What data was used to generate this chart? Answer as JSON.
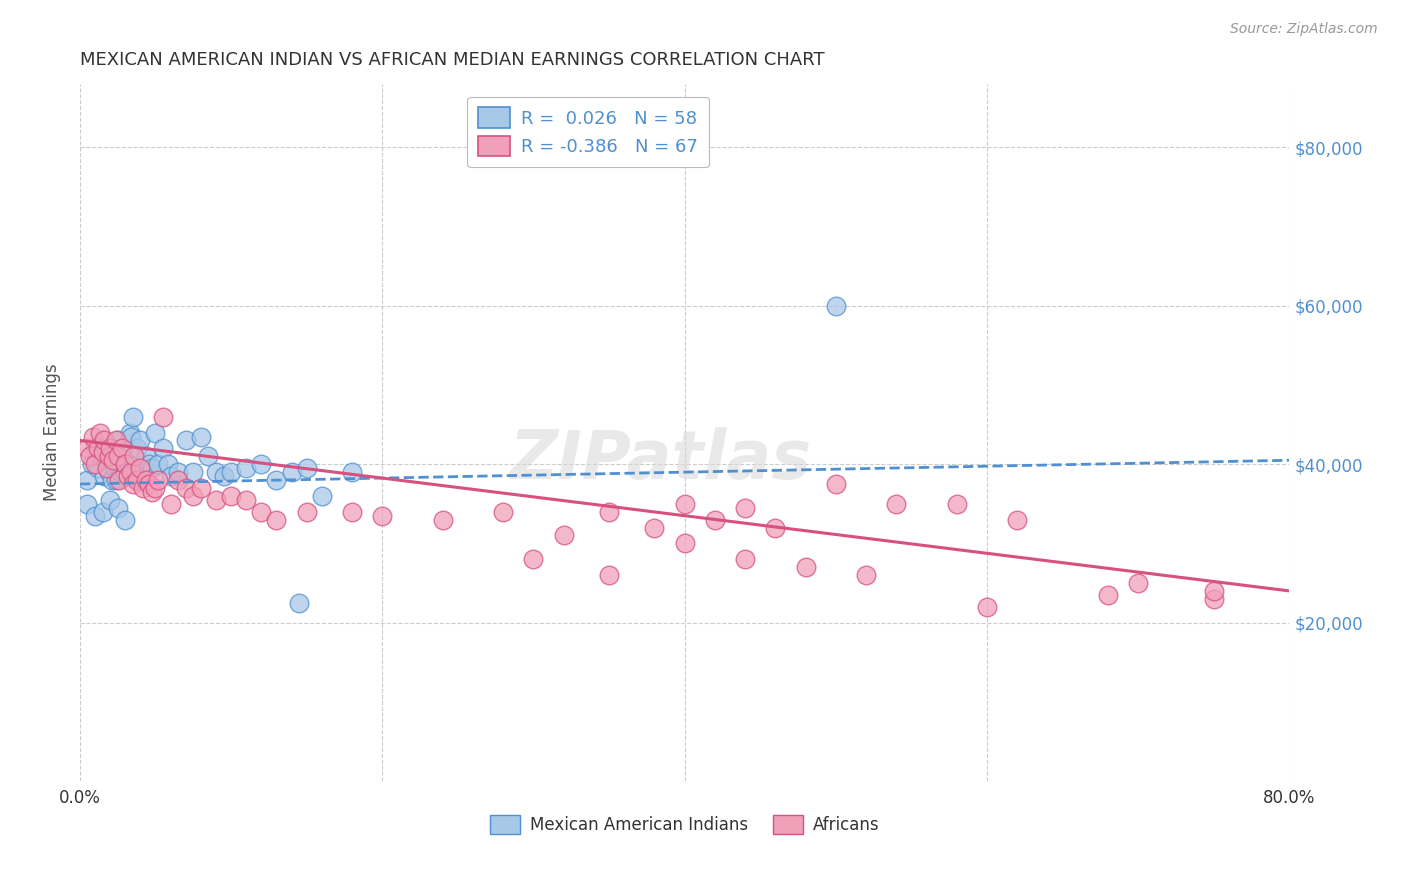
{
  "title": "MEXICAN AMERICAN INDIAN VS AFRICAN MEDIAN EARNINGS CORRELATION CHART",
  "source": "Source: ZipAtlas.com",
  "ylabel": "Median Earnings",
  "yticks": [
    20000,
    40000,
    60000,
    80000
  ],
  "ytick_labels": [
    "$20,000",
    "$40,000",
    "$60,000",
    "$80,000"
  ],
  "color_blue": "#a8c8e8",
  "color_pink": "#f0a0b8",
  "line_blue": "#5090d0",
  "line_pink": "#d85080",
  "watermark": "ZIPatlas",
  "blue_scatter_x": [
    0.005,
    0.008,
    0.01,
    0.012,
    0.014,
    0.015,
    0.016,
    0.018,
    0.019,
    0.02,
    0.021,
    0.022,
    0.023,
    0.024,
    0.025,
    0.026,
    0.027,
    0.028,
    0.03,
    0.032,
    0.033,
    0.034,
    0.035,
    0.036,
    0.038,
    0.04,
    0.042,
    0.044,
    0.046,
    0.048,
    0.05,
    0.052,
    0.055,
    0.058,
    0.06,
    0.065,
    0.07,
    0.075,
    0.08,
    0.085,
    0.09,
    0.095,
    0.1,
    0.11,
    0.12,
    0.13,
    0.14,
    0.15,
    0.16,
    0.18,
    0.005,
    0.01,
    0.015,
    0.02,
    0.025,
    0.03,
    0.145,
    0.5
  ],
  "blue_scatter_y": [
    38000,
    40000,
    42000,
    39500,
    41000,
    43000,
    38500,
    40500,
    39000,
    42000,
    38000,
    41000,
    39500,
    38000,
    43000,
    40000,
    39000,
    41500,
    39000,
    40000,
    44000,
    43500,
    46000,
    39000,
    42000,
    43000,
    39500,
    41000,
    40000,
    39500,
    44000,
    40000,
    42000,
    40000,
    38500,
    39000,
    43000,
    39000,
    43500,
    41000,
    39000,
    38500,
    39000,
    39500,
    40000,
    38000,
    39000,
    39500,
    36000,
    39000,
    35000,
    33500,
    34000,
    35500,
    34500,
    33000,
    22500,
    60000
  ],
  "pink_scatter_x": [
    0.005,
    0.007,
    0.009,
    0.01,
    0.012,
    0.013,
    0.015,
    0.016,
    0.018,
    0.019,
    0.02,
    0.022,
    0.024,
    0.025,
    0.026,
    0.028,
    0.03,
    0.032,
    0.034,
    0.035,
    0.036,
    0.038,
    0.04,
    0.042,
    0.044,
    0.046,
    0.048,
    0.05,
    0.052,
    0.055,
    0.06,
    0.065,
    0.07,
    0.075,
    0.08,
    0.09,
    0.1,
    0.11,
    0.12,
    0.13,
    0.15,
    0.18,
    0.2,
    0.24,
    0.28,
    0.32,
    0.35,
    0.38,
    0.4,
    0.42,
    0.44,
    0.46,
    0.5,
    0.54,
    0.58,
    0.62,
    0.7,
    0.75,
    0.3,
    0.35,
    0.4,
    0.44,
    0.48,
    0.52,
    0.6,
    0.68,
    0.75
  ],
  "pink_scatter_y": [
    42000,
    41000,
    43500,
    40000,
    42000,
    44000,
    41500,
    43000,
    39500,
    41000,
    42000,
    40500,
    43000,
    41000,
    38000,
    42000,
    40000,
    38500,
    39000,
    37500,
    41000,
    38000,
    39500,
    37000,
    38000,
    37500,
    36500,
    37000,
    38000,
    46000,
    35000,
    38000,
    37000,
    36000,
    37000,
    35500,
    36000,
    35500,
    34000,
    33000,
    34000,
    34000,
    33500,
    33000,
    34000,
    31000,
    34000,
    32000,
    35000,
    33000,
    34500,
    32000,
    37500,
    35000,
    35000,
    33000,
    25000,
    23000,
    28000,
    26000,
    30000,
    28000,
    27000,
    26000,
    22000,
    23500,
    24000
  ],
  "blue_line_x": [
    0.0,
    0.8
  ],
  "blue_line_y": [
    37500,
    40500
  ],
  "pink_line_x": [
    0.0,
    0.8
  ],
  "pink_line_y": [
    43000,
    24000
  ],
  "xlim": [
    0.0,
    0.8
  ],
  "ylim": [
    0,
    88000
  ],
  "xtick_positions": [
    0.0,
    0.2,
    0.4,
    0.6,
    0.8
  ],
  "bg_color": "#ffffff",
  "grid_color": "#cccccc",
  "title_color": "#333333",
  "yticklabel_color": "#5090d0",
  "source_color": "#999999"
}
